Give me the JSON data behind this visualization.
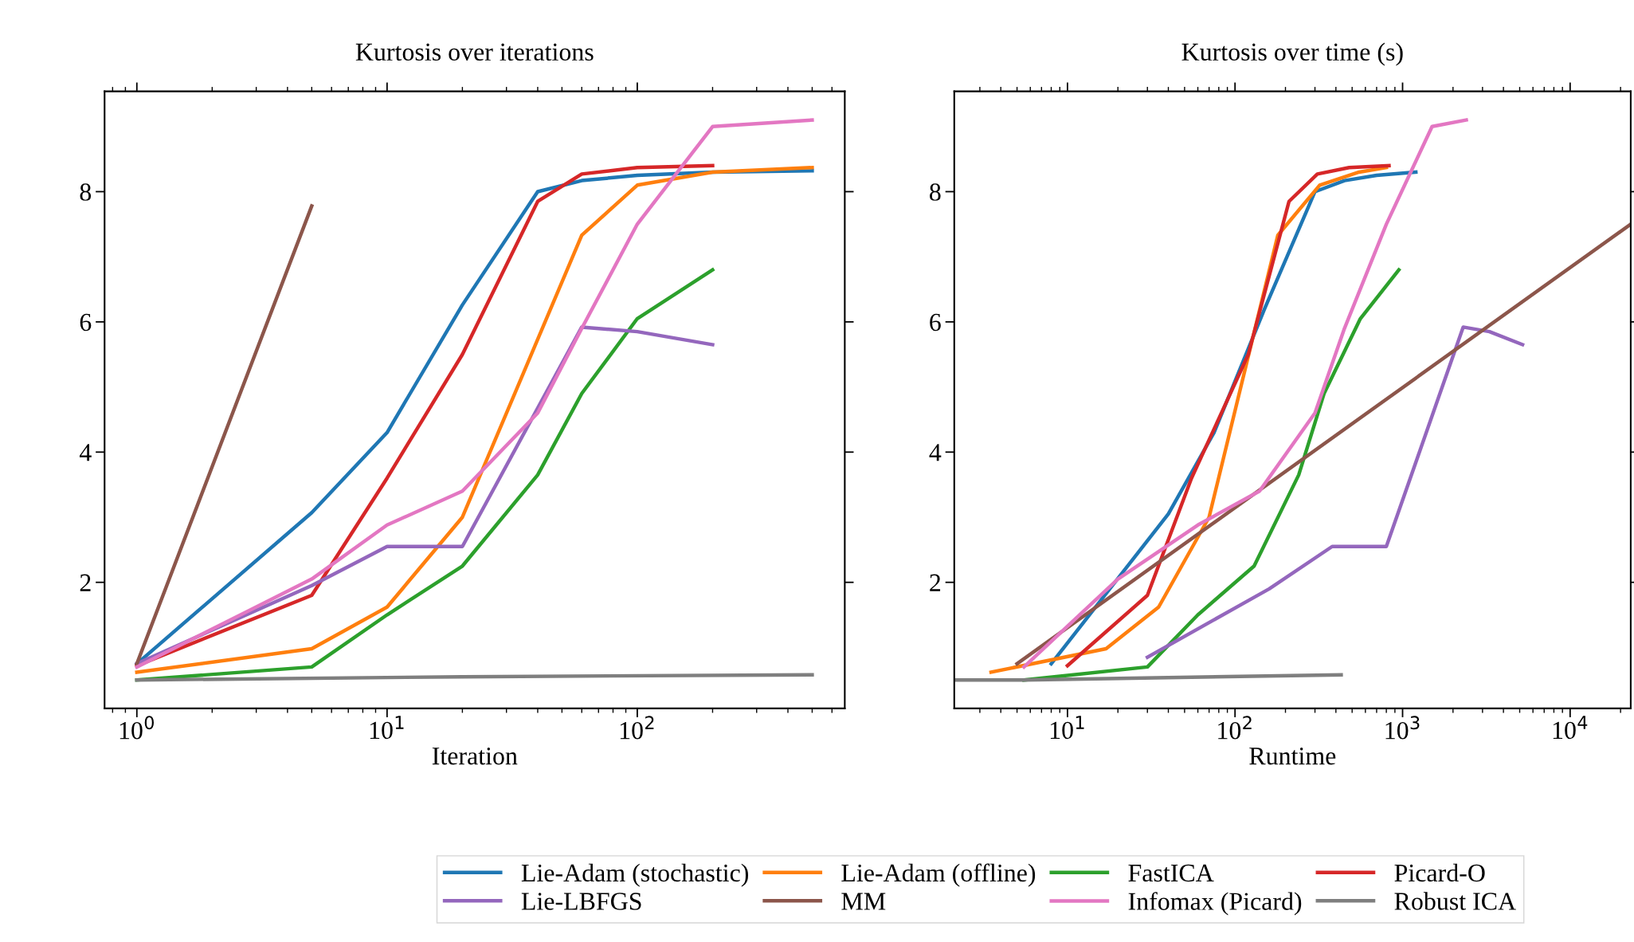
{
  "chart_data": [
    {
      "type": "line",
      "title": "Kurtosis over iterations",
      "xlabel": "Iteration",
      "log": "x",
      "xlim": [
        0.743,
        675
      ],
      "xticks": [
        {
          "value": 1,
          "label": "10$^{0}$"
        },
        {
          "value": 10,
          "label": "10$^{1}$"
        },
        {
          "value": 100,
          "label": "10$^{2}$"
        }
      ],
      "ylim": [
        0.064,
        9.54
      ],
      "yticks": [
        2,
        4,
        6,
        8
      ],
      "grid": false,
      "legend": "bottom",
      "series": [
        {
          "name": "Lie-Adam (stochastic)",
          "color": "#1f77b4",
          "x": [
            1,
            5,
            10,
            20,
            40,
            60,
            100,
            200,
            500
          ],
          "values": [
            0.75,
            3.07,
            4.3,
            6.26,
            8.0,
            8.17,
            8.25,
            8.3,
            8.32
          ]
        },
        {
          "name": "Lie-Adam (offline)",
          "color": "#ff7f0e",
          "x": [
            1,
            5,
            10,
            20,
            60,
            100,
            200,
            500
          ],
          "values": [
            0.62,
            0.98,
            1.62,
            3.0,
            7.33,
            8.1,
            8.3,
            8.37
          ]
        },
        {
          "name": "FastICA",
          "color": "#2ca02c",
          "x": [
            1,
            5,
            10,
            20,
            40,
            60,
            100,
            200
          ],
          "values": [
            0.5,
            0.7,
            1.5,
            2.25,
            3.65,
            4.9,
            6.05,
            6.8
          ]
        },
        {
          "name": "Picard-O",
          "color": "#d62728",
          "x": [
            1,
            5,
            10,
            20,
            40,
            60,
            100,
            200
          ],
          "values": [
            0.72,
            1.8,
            3.6,
            5.5,
            7.85,
            8.27,
            8.37,
            8.4
          ]
        },
        {
          "name": "Lie-LBFGS",
          "color": "#9467bd",
          "x": [
            1,
            5,
            10,
            20,
            60,
            100,
            200
          ],
          "values": [
            0.75,
            1.95,
            2.55,
            2.55,
            5.92,
            5.85,
            5.65
          ]
        },
        {
          "name": "MM",
          "color": "#8c564b",
          "x": [
            1,
            5
          ],
          "values": [
            0.75,
            7.78
          ]
        },
        {
          "name": "Infomax (Picard)",
          "color": "#e377c2",
          "x": [
            1,
            5,
            10,
            20,
            40,
            60,
            100,
            200,
            500
          ],
          "values": [
            0.7,
            2.05,
            2.88,
            3.4,
            4.6,
            5.9,
            7.5,
            9.0,
            9.1
          ]
        },
        {
          "name": "Robust ICA",
          "color": "#7f7f7f",
          "x": [
            1,
            20,
            500
          ],
          "values": [
            0.5,
            0.55,
            0.58
          ]
        }
      ]
    },
    {
      "type": "line",
      "title": "Kurtosis over time (s)",
      "xlabel": "Runtime",
      "log": "x",
      "xlim": [
        2.11,
        23000
      ],
      "xticks": [
        {
          "value": 10,
          "label": "10$^{1}$"
        },
        {
          "value": 100,
          "label": "10$^{2}$"
        },
        {
          "value": 1000,
          "label": "10$^{3}$"
        },
        {
          "value": 10000,
          "label": "10$^{4}$"
        }
      ],
      "ylim": [
        0.064,
        9.54
      ],
      "yticks": [
        2,
        4,
        6,
        8
      ],
      "grid": false,
      "series": [
        {
          "color": "#1f77b4",
          "x": [
            8,
            40,
            75,
            150,
            300,
            450,
            700,
            1200
          ],
          "values": [
            0.75,
            3.05,
            4.3,
            6.2,
            8.0,
            8.17,
            8.25,
            8.3
          ]
        },
        {
          "color": "#ff7f0e",
          "x": [
            3.5,
            17,
            35,
            70,
            180,
            320,
            550,
            800
          ],
          "values": [
            0.62,
            0.98,
            1.62,
            3.0,
            7.33,
            8.1,
            8.3,
            8.37
          ]
        },
        {
          "color": "#2ca02c",
          "x": [
            5.5,
            30,
            60,
            130,
            240,
            340,
            560,
            950
          ],
          "values": [
            0.5,
            0.7,
            1.5,
            2.25,
            3.65,
            4.9,
            6.05,
            6.8
          ]
        },
        {
          "color": "#d62728",
          "x": [
            10,
            30,
            55,
            120,
            210,
            310,
            480,
            830
          ],
          "values": [
            0.72,
            1.8,
            3.6,
            5.5,
            7.85,
            8.27,
            8.37,
            8.4
          ]
        },
        {
          "color": "#9467bd",
          "x": [
            30,
            160,
            380,
            800,
            2300,
            3300,
            5200
          ],
          "values": [
            0.85,
            1.9,
            2.55,
            2.55,
            5.92,
            5.85,
            5.65
          ]
        },
        {
          "color": "#8c564b",
          "x": [
            5,
            23000
          ],
          "values": [
            0.75,
            7.5
          ]
        },
        {
          "color": "#e377c2",
          "x": [
            5.5,
            20,
            60,
            140,
            300,
            450,
            800,
            1500,
            2400
          ],
          "values": [
            0.7,
            2.05,
            2.88,
            3.4,
            4.6,
            5.9,
            7.5,
            9.0,
            9.1
          ]
        },
        {
          "color": "#7f7f7f",
          "x": [
            2.11,
            5.5,
            430
          ],
          "values": [
            0.5,
            0.5,
            0.58
          ]
        }
      ]
    }
  ]
}
